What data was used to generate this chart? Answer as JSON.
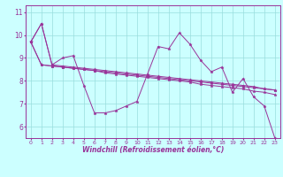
{
  "title": "",
  "xlabel": "Windchill (Refroidissement éolien,°C)",
  "bg_color": "#ccffff",
  "line_color": "#993399",
  "grid_color": "#99dddd",
  "x_ticks": [
    0,
    1,
    2,
    3,
    4,
    5,
    6,
    7,
    8,
    9,
    10,
    11,
    12,
    13,
    14,
    15,
    16,
    17,
    18,
    19,
    20,
    21,
    22,
    23
  ],
  "y_ticks": [
    6,
    7,
    8,
    9,
    10,
    11
  ],
  "ylim": [
    5.5,
    11.3
  ],
  "xlim": [
    -0.5,
    23.5
  ],
  "series": [
    [
      9.7,
      10.5,
      8.7,
      9.0,
      9.1,
      7.8,
      6.6,
      6.6,
      6.7,
      6.9,
      7.1,
      8.3,
      9.5,
      9.4,
      10.1,
      9.6,
      8.9,
      8.4,
      8.6,
      7.5,
      8.1,
      7.3,
      6.9,
      5.5
    ],
    [
      9.7,
      10.5,
      8.7,
      8.65,
      8.6,
      8.55,
      8.5,
      8.45,
      8.4,
      8.35,
      8.3,
      8.25,
      8.2,
      8.15,
      8.1,
      8.05,
      8.0,
      7.95,
      7.9,
      7.85,
      7.8,
      7.75,
      7.65,
      7.6
    ],
    [
      9.7,
      8.7,
      8.65,
      8.6,
      8.55,
      8.5,
      8.45,
      8.4,
      8.35,
      8.3,
      8.25,
      8.2,
      8.15,
      8.1,
      8.05,
      8.0,
      7.95,
      7.9,
      7.85,
      7.8,
      7.75,
      7.7,
      7.65,
      7.6
    ],
    [
      9.7,
      8.7,
      8.65,
      8.6,
      8.55,
      8.5,
      8.45,
      8.35,
      8.3,
      8.25,
      8.2,
      8.15,
      8.1,
      8.05,
      8.0,
      7.95,
      7.85,
      7.8,
      7.75,
      7.7,
      7.65,
      7.55,
      7.5,
      7.4
    ]
  ]
}
